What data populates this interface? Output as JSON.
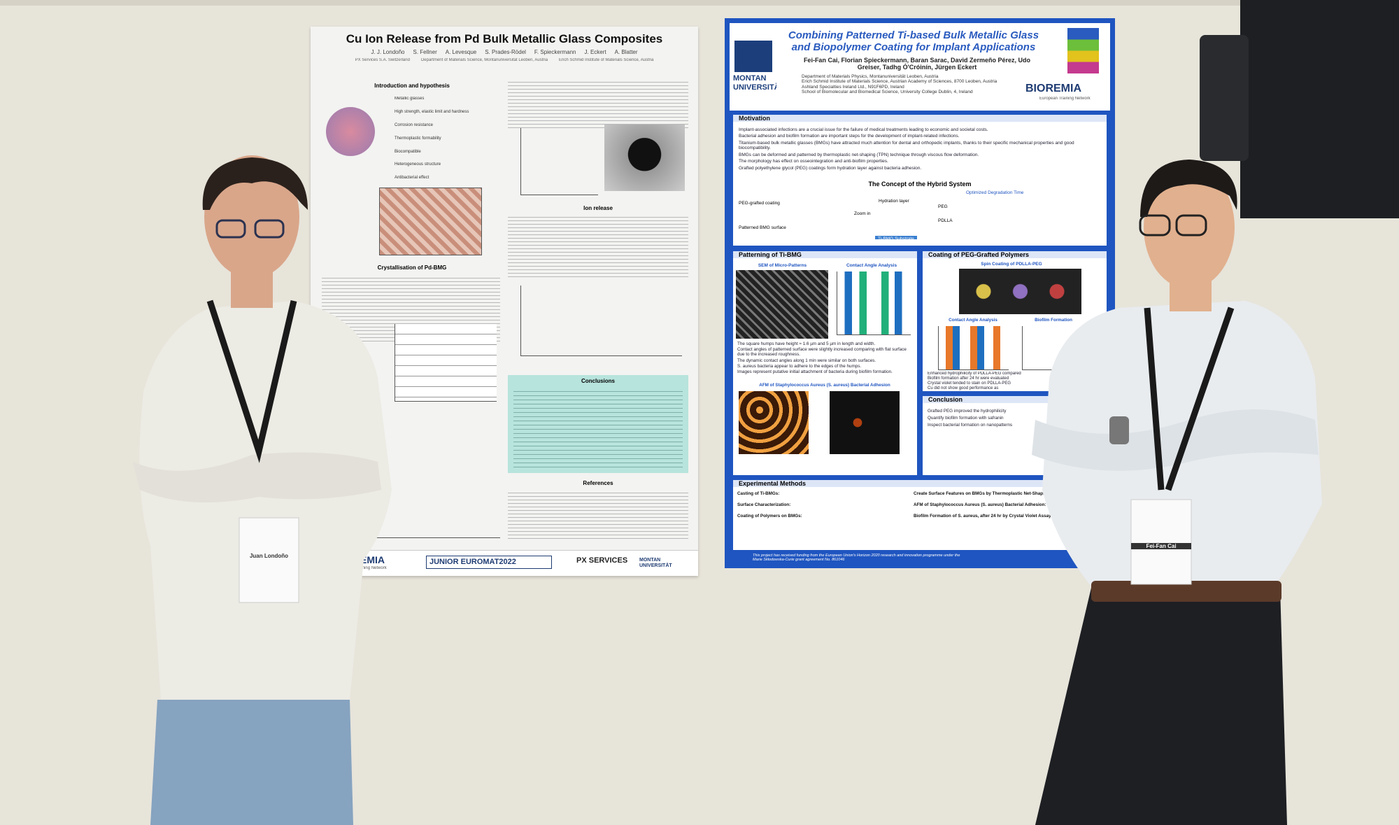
{
  "left_poster": {
    "title": "Cu Ion Release from Pd Bulk Metallic Glass Composites",
    "authors": [
      "J. J. Londoño",
      "S. Fellner",
      "A. Levesque",
      "S. Prades-Rödel",
      "F. Spieckermann",
      "J. Eckert",
      "A. Blatter"
    ],
    "affiliations": [
      "PX Services S.A. Switzerland",
      "Department of Materials Science, Montanuniversität Leoben, Austria",
      "Erich Schmid Institute of Materials Science, Austria"
    ],
    "sections": [
      "Introduction and hypothesis",
      "Crystallisation of Pd-BMG",
      "Ion release",
      "Conclusions",
      "References"
    ],
    "intro_labels": [
      "Metallic glasses",
      "High strength, elastic limit and hardness",
      "Corrosion resistance",
      "Thermoplastic formability",
      "Biocompatible",
      "Heterogeneous structure",
      "Antibacterial effect"
    ],
    "footer": [
      "BIOREMIA",
      "European Training Network",
      "JUNIOR EUROMAT2022",
      "PX SERVICES",
      "MONTAN UNIVERSITÄT"
    ]
  },
  "right_poster": {
    "title": "Combining Patterned Ti-based Bulk Metallic Glass and Biopolymer Coating for Implant Applications",
    "authors": "Fei-Fan Cai, Florian Spieckermann, Baran Sarac, David Zermeño Pérez, Udo Greiser, Tadhg Ó'Cróinín, Jürgen Eckert",
    "affiliations": [
      "Department of Materials Physics, Montanuniversität Leoben, Austria",
      "Erich Schmid Institute of Materials Science, Austrian Academy of Sciences, 8700 Leoben, Austria",
      "Ashland Specialties Ireland Ltd., N91F6PD, Ireland",
      "School of Biomolecular and Biomedical Science, University College Dublin, 4, Ireland"
    ],
    "logo": "MONTAN UNIVERSITÄT",
    "network": "BIOREMIA",
    "network_sub": "European Training Network",
    "motivation_title": "Motivation",
    "motivation": [
      "Implant-associated infections are a crucial issue for the failure of medical treatments leading to economic and societal costs.",
      "Bacterial adhesion and biofilm formation are important steps for the development of implant-related infections.",
      "Titanium-based bulk metallic glasses (BMGs) have attracted much attention for dental and orthopedic implants, thanks to their specific mechanical properties and good biocompatibility.",
      "BMGs can be deformed and patterned by thermoplastic net-shaping (TPN) technique through viscous flow deformation.",
      "The morphology has effect on osseointegration and anti-biofilm properties.",
      "Grafted polyethylene glycol (PEG) coatings form hydration layer against bacteria adhesion."
    ],
    "concept_title": "The Concept of the Hybrid System",
    "concept_labels": [
      "PEG-grafted coating",
      "Patterned BMG surface",
      "Zoom in",
      "Hydration layer",
      "PEG",
      "PDLLA",
      "Optimized Degradation Time",
      "Ti-BMG Substrate"
    ],
    "patterning_title": "Patterning of Ti-BMG",
    "patterning_labels": [
      "SEM of Micro-Patterns",
      "Contact Angle Analysis",
      "AFM of Staphylococcus Aureus (S. aureus) Bacterial Adhesion"
    ],
    "patterning_bullets": [
      "The square humps have height ≈ 1.6 µm and 5 µm in length and width.",
      "Contact angles of patterned surface were slightly increased comparing with flat surface due to the increased roughness.",
      "The dynamic contact angles along 1 min were similar on both surfaces.",
      "S. aureus bacteria appear to adhere to the edges of the humps.",
      "Images represent putative initial attachment of bacteria during biofilm formation."
    ],
    "coating_title": "Coating of PEG-Grafted Polymers",
    "coating_labels": [
      "Spin Coating of PDLLA-PEG",
      "Contact Angle Analysis",
      "Biofilm Formation"
    ],
    "coating_bullets": [
      "Enhanced hydrophilicity of PDLLA-PEG compared",
      "Biofilm formation after 24 hr were evaluated",
      "Crystal violet tended to stain on PDLLA-PEG",
      "Cu did not show good performance as"
    ],
    "conclusion_title": "Conclusion",
    "conclusion": [
      "Grafted PEG improved the hydrophilicity",
      "Quantify biofilm formation with safranin",
      "Inspect bacterial formation on nanopatterns"
    ],
    "methods_title": "Experimental Methods",
    "methods": [
      "Casting of Ti-BMGs:",
      "Create Surface Features on BMGs by Thermoplastic Net-Shaping (TPN):",
      "Surface Characterization:",
      "AFM of Staphylococcus Aureus (S. aureus) Bacterial Adhesion:",
      "Coating of Polymers on BMGs:",
      "Biofilm Formation of S. aureus, after 24 hr by Crystal Violet Assay:"
    ],
    "funding": "This project has received funding from the European Union's Horizon 2020 research and innovation programme under the Marie Skłodowska-Curie grant agreement No. 861046"
  },
  "badges": [
    "Juan Londoño",
    "Fei-Fan Cai"
  ]
}
